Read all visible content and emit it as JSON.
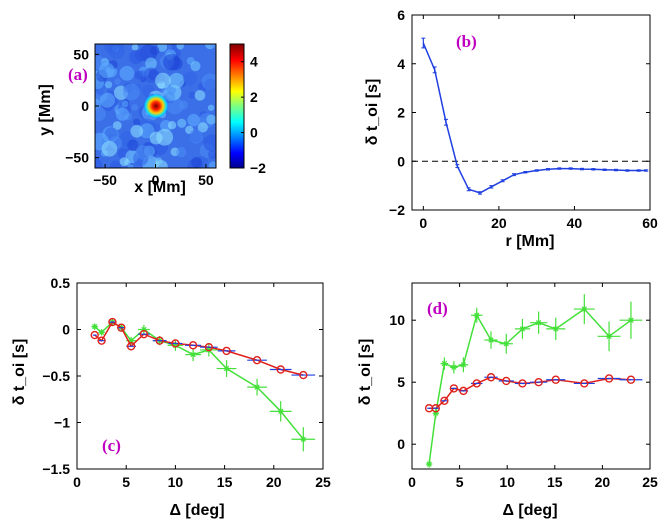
{
  "chart_data": [
    {
      "id": "a",
      "type": "heatmap",
      "panel_label": "(a)",
      "xlabel": "x [Mm]",
      "ylabel": "y [Mm]",
      "xlim": [
        -60,
        60
      ],
      "ylim": [
        -60,
        60
      ],
      "xticks": [
        -50,
        0,
        50
      ],
      "yticks": [
        50,
        0,
        -50
      ],
      "colorbar": {
        "range": [
          -2,
          5
        ],
        "ticks": [
          4,
          2,
          0,
          -2
        ]
      },
      "peak": {
        "x": 0,
        "y": 0,
        "value": 4.8
      },
      "background_value": -0.3
    },
    {
      "id": "b",
      "type": "line",
      "panel_label": "(b)",
      "xlabel": "r [Mm]",
      "ylabel": "δ t_oi [s]",
      "xlim": [
        -3,
        60
      ],
      "ylim": [
        -2,
        6
      ],
      "xticks": [
        0,
        20,
        40,
        60
      ],
      "yticks": [
        6,
        4,
        2,
        0,
        -2
      ],
      "reference_line": 0,
      "series": [
        {
          "name": "δ t_oi",
          "color": "#1f3fe0",
          "x": [
            0,
            3,
            6,
            9,
            12,
            15,
            18,
            21,
            24,
            27,
            30,
            33,
            36,
            39,
            42,
            45,
            48,
            51,
            54,
            57,
            59
          ],
          "y": [
            4.85,
            3.75,
            1.6,
            -0.2,
            -1.15,
            -1.3,
            -1.05,
            -0.8,
            -0.55,
            -0.45,
            -0.38,
            -0.33,
            -0.3,
            -0.3,
            -0.32,
            -0.33,
            -0.35,
            -0.36,
            -0.38,
            -0.38,
            -0.38
          ],
          "err": [
            0.2,
            0.12,
            0.12,
            0.06,
            0.06,
            0.05,
            0.05,
            0.04,
            0.04,
            0.03,
            0.03,
            0.03,
            0.03,
            0.03,
            0.03,
            0.03,
            0.03,
            0.03,
            0.03,
            0.03,
            0.03
          ]
        }
      ]
    },
    {
      "id": "c",
      "type": "line",
      "panel_label": "(c)",
      "xlabel": "Δ [deg]",
      "ylabel": "δ t_oi [s]",
      "xlim": [
        0,
        25
      ],
      "ylim": [
        -1.5,
        0.5
      ],
      "xticks": [
        0,
        5,
        10,
        15,
        20,
        25
      ],
      "yticks": [
        0.5,
        0,
        -0.5,
        -1,
        -1.5
      ],
      "series": [
        {
          "name": "green",
          "color": "#44e03a",
          "marker": "star",
          "x": [
            1.8,
            2.5,
            3.6,
            4.5,
            5.5,
            6.8,
            8.4,
            10.0,
            11.8,
            13.4,
            15.2,
            18.3,
            20.7,
            23.0
          ],
          "y": [
            0.03,
            -0.03,
            0.08,
            0.02,
            -0.12,
            0.0,
            -0.12,
            -0.17,
            -0.27,
            -0.22,
            -0.42,
            -0.62,
            -0.88,
            -1.18
          ],
          "yerr": [
            0.03,
            0.03,
            0.04,
            0.04,
            0.04,
            0.05,
            0.05,
            0.06,
            0.07,
            0.07,
            0.09,
            0.09,
            0.11,
            0.13
          ],
          "xerr": [
            0.3,
            0.3,
            0.4,
            0.4,
            0.5,
            0.6,
            0.7,
            0.8,
            0.8,
            0.9,
            1.0,
            1.0,
            1.1,
            1.2
          ]
        },
        {
          "name": "red",
          "color": "#e0201a",
          "marker": "circle",
          "x": [
            1.8,
            2.5,
            3.6,
            4.5,
            5.5,
            6.8,
            8.4,
            10.0,
            11.8,
            13.4,
            15.2,
            18.3,
            20.7,
            23.0
          ],
          "y": [
            -0.06,
            -0.12,
            0.08,
            0.02,
            -0.18,
            -0.05,
            -0.12,
            -0.15,
            -0.17,
            -0.19,
            -0.23,
            -0.33,
            -0.43,
            -0.49
          ],
          "yerr": [
            0.0,
            0.0,
            0.0,
            0.0,
            0.0,
            0.0,
            0.0,
            0.0,
            0.0,
            0.0,
            0.0,
            0.0,
            0.0,
            0.0
          ],
          "xerr": [
            0.2,
            0.3,
            0.3,
            0.4,
            0.5,
            0.6,
            0.7,
            0.7,
            0.8,
            0.9,
            0.9,
            1.0,
            1.1,
            1.2
          ]
        }
      ]
    },
    {
      "id": "d",
      "type": "line",
      "panel_label": "(d)",
      "xlabel": "Δ [deg]",
      "ylabel": "δ t_oi [s]",
      "xlim": [
        0,
        25
      ],
      "ylim": [
        -2,
        13
      ],
      "xticks": [
        0,
        5,
        10,
        15,
        20,
        25
      ],
      "yticks": [
        10,
        5,
        0
      ],
      "series": [
        {
          "name": "green",
          "color": "#44e03a",
          "marker": "star",
          "x": [
            1.8,
            2.5,
            3.4,
            4.4,
            5.4,
            6.8,
            8.3,
            9.9,
            11.6,
            13.3,
            15.1,
            18.1,
            20.7,
            23.0
          ],
          "y": [
            -1.6,
            2.5,
            6.5,
            6.2,
            6.4,
            10.4,
            8.4,
            8.1,
            9.3,
            9.8,
            9.3,
            10.9,
            8.7,
            10.0
          ],
          "yerr": [
            0.3,
            0.4,
            0.5,
            0.5,
            0.6,
            0.6,
            0.7,
            0.8,
            0.8,
            0.9,
            0.9,
            1.2,
            1.2,
            1.5
          ],
          "xerr": [
            0.2,
            0.3,
            0.4,
            0.4,
            0.5,
            0.6,
            0.7,
            0.7,
            0.8,
            0.9,
            1.0,
            1.1,
            1.2,
            1.2
          ]
        },
        {
          "name": "red",
          "color": "#e0201a",
          "marker": "circle",
          "x": [
            1.8,
            2.5,
            3.4,
            4.4,
            5.4,
            6.8,
            8.3,
            9.9,
            11.6,
            13.3,
            15.1,
            18.1,
            20.7,
            23.0
          ],
          "y": [
            2.9,
            2.9,
            3.5,
            4.5,
            4.3,
            4.9,
            5.4,
            5.1,
            4.9,
            5.0,
            5.2,
            4.9,
            5.3,
            5.2
          ],
          "yerr": [
            0.0,
            0.0,
            0.0,
            0.0,
            0.0,
            0.0,
            0.0,
            0.0,
            0.0,
            0.0,
            0.0,
            0.0,
            0.0,
            0.0
          ],
          "xerr": [
            0.2,
            0.3,
            0.3,
            0.4,
            0.5,
            0.6,
            0.7,
            0.8,
            0.8,
            0.9,
            1.0,
            1.1,
            1.2,
            1.2
          ]
        }
      ]
    }
  ]
}
